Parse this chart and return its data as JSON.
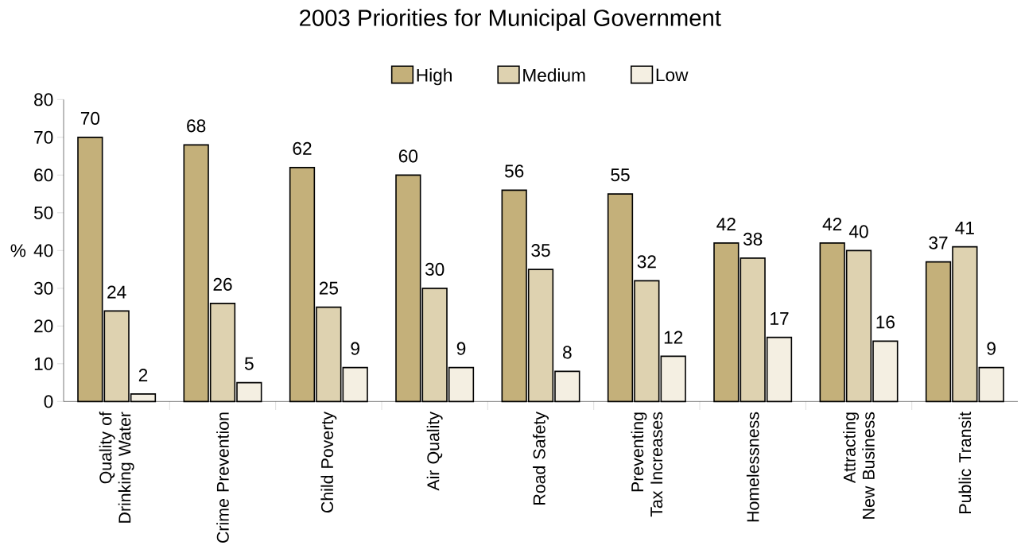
{
  "chart_data": {
    "type": "bar",
    "title": "2003 Priorities for  Municipal Government",
    "ylabel": "%",
    "categories": [
      "Quality of Drinking Water",
      "Crime Prevention",
      "Child Poverty",
      "Air Quality",
      "Road Safety",
      "Preventing Tax Increases",
      "Homelessness",
      "Attracting New Business",
      "Public Transit"
    ],
    "series": [
      {
        "name": "High",
        "color": "#c4b07a",
        "values": [
          70,
          68,
          62,
          60,
          56,
          55,
          42,
          42,
          37
        ]
      },
      {
        "name": "Medium",
        "color": "#ded2b0",
        "values": [
          24,
          26,
          25,
          30,
          35,
          32,
          38,
          40,
          41
        ]
      },
      {
        "name": "Low",
        "color": "#f4efe2",
        "values": [
          2,
          5,
          9,
          9,
          8,
          12,
          17,
          16,
          9
        ]
      }
    ],
    "ylim": [
      0,
      80
    ],
    "yticks": [
      0,
      10,
      20,
      30,
      40,
      50,
      60,
      70,
      80
    ],
    "data_labels": true,
    "legend": "top",
    "grid": false
  }
}
